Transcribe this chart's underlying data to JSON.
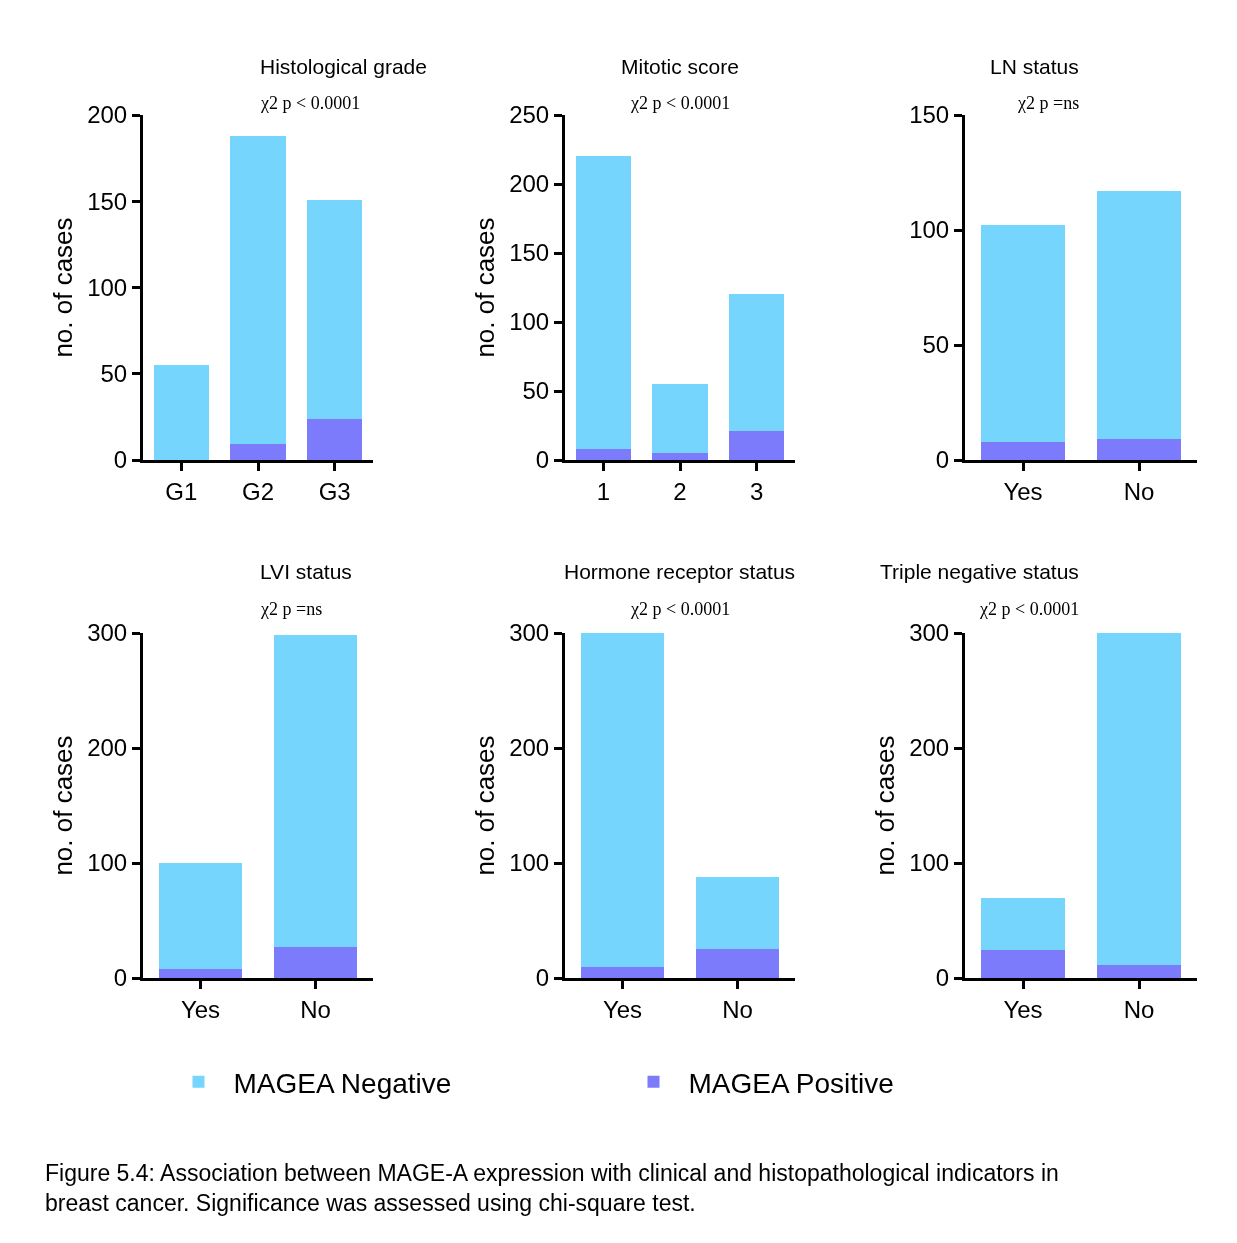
{
  "chart_data": [
    {
      "type": "bar",
      "stacked": true,
      "title": "Histological grade",
      "subtitle": "χ2 p < 0.0001",
      "ylabel": "no. of cases",
      "categories": [
        "G1",
        "G2",
        "G3"
      ],
      "ylim": [
        0,
        200
      ],
      "yticks": [
        0,
        50,
        100,
        150,
        200
      ],
      "legend": "bottom",
      "series": [
        {
          "name": "MAGEA Positive",
          "color": "#7b7bfb",
          "values": [
            0,
            9,
            24
          ]
        },
        {
          "name": "MAGEA Negative",
          "color": "#75d5fd",
          "values": [
            55,
            179,
            127
          ]
        }
      ]
    },
    {
      "type": "bar",
      "stacked": true,
      "title": "Mitotic score",
      "subtitle": "χ2 p < 0.0001",
      "ylabel": "no. of cases",
      "categories": [
        "1",
        "2",
        "3"
      ],
      "ylim": [
        0,
        250
      ],
      "yticks": [
        0,
        50,
        100,
        150,
        200,
        250
      ],
      "series": [
        {
          "color": "#7b7bfb",
          "values": [
            8,
            5,
            21
          ]
        },
        {
          "color": "#75d5fd",
          "values": [
            212,
            50,
            99
          ]
        }
      ]
    },
    {
      "type": "bar",
      "stacked": true,
      "title": "LN status",
      "subtitle": "χ2 p =ns",
      "categories": [
        "Yes",
        "No"
      ],
      "ylim": [
        0,
        150
      ],
      "yticks": [
        0,
        50,
        100,
        150
      ],
      "series": [
        {
          "color": "#7b7bfb",
          "values": [
            8,
            9
          ]
        },
        {
          "color": "#75d5fd",
          "values": [
            94,
            108
          ]
        }
      ]
    },
    {
      "type": "bar",
      "stacked": true,
      "title": "LVI status",
      "subtitle": "χ2 p =ns",
      "ylabel": "no. of cases",
      "categories": [
        "Yes",
        "No"
      ],
      "ylim": [
        0,
        300
      ],
      "yticks": [
        0,
        100,
        200,
        300
      ],
      "series": [
        {
          "color": "#7b7bfb",
          "values": [
            8,
            27
          ]
        },
        {
          "color": "#75d5fd",
          "values": [
            92,
            271
          ]
        }
      ]
    },
    {
      "type": "bar",
      "stacked": true,
      "title": "Hormone receptor status",
      "subtitle": "χ2 p < 0.0001",
      "ylabel": "no. of cases",
      "categories": [
        "Yes",
        "No"
      ],
      "ylim": [
        0,
        300
      ],
      "yticks": [
        0,
        100,
        200,
        300
      ],
      "series": [
        {
          "color": "#7b7bfb",
          "values": [
            10,
            25
          ]
        },
        {
          "color": "#75d5fd",
          "values": [
            290,
            63
          ]
        }
      ]
    },
    {
      "type": "bar",
      "stacked": true,
      "title": "Triple negative status",
      "subtitle": "χ2 p < 0.0001",
      "ylabel": "no. of cases",
      "categories": [
        "Yes",
        "No"
      ],
      "ylim": [
        0,
        300
      ],
      "yticks": [
        0,
        100,
        200,
        300
      ],
      "annotations": [
        "Figure 5.4: Association between MAGE-A expression with clinical and histopathological indicators in breast cancer. Significance was assessed using chi-square test."
      ],
      "series": [
        {
          "color": "#7b7bfb",
          "values": [
            24,
            11
          ]
        },
        {
          "color": "#75d5fd",
          "values": [
            46,
            289
          ]
        }
      ]
    }
  ]
}
